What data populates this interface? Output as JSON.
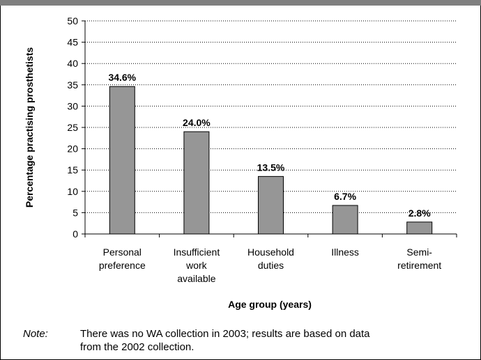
{
  "chart_data": {
    "type": "bar",
    "categories": [
      [
        "Personal",
        "preference"
      ],
      [
        "Insufficient",
        "work",
        "available"
      ],
      [
        "Household",
        "duties"
      ],
      [
        "Illness"
      ],
      [
        "Semi-",
        "retirement"
      ]
    ],
    "values": [
      34.6,
      24.0,
      13.5,
      6.7,
      2.8
    ],
    "data_labels": [
      "34.6%",
      "24.0%",
      "13.5%",
      "6.7%",
      "2.8%"
    ],
    "xlabel": "Age group (years)",
    "ylabel": "Percentage practising prosthetists",
    "ylim": [
      0,
      50
    ],
    "yticks": [
      0,
      5,
      10,
      15,
      20,
      25,
      30,
      35,
      40,
      45,
      50
    ],
    "grid": "horizontal-dotted",
    "bar_color": "#969696"
  },
  "note": {
    "label": "Note:",
    "lines": [
      "There was no WA collection in 2003; results are based on data",
      "from the 2002 collection."
    ]
  }
}
